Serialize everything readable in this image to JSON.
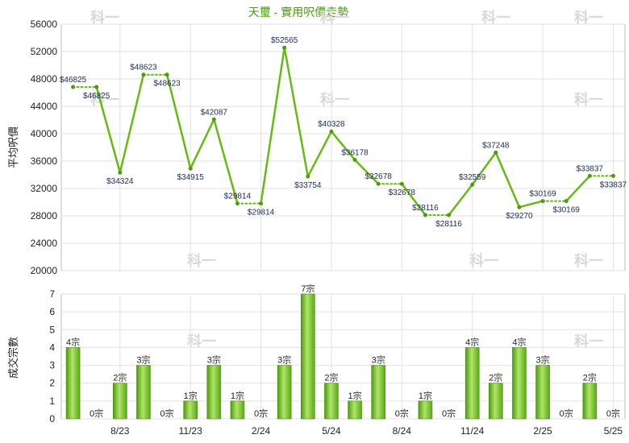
{
  "chart_data": [
    {
      "type": "line",
      "title": "天璽 - 實用呎價走勢",
      "ylabel": "平均呎價",
      "ylim": [
        20000,
        56000
      ],
      "yticks": [
        20000,
        24000,
        28000,
        32000,
        36000,
        40000,
        44000,
        48000,
        52000,
        56000
      ],
      "color": "#66bb11",
      "points": [
        {
          "label": "$46825",
          "value": 46825,
          "estimated": false
        },
        {
          "label": "$46825",
          "value": 46825,
          "estimated": true
        },
        {
          "label": "$34324",
          "value": 34324,
          "estimated": false
        },
        {
          "label": "$48623",
          "value": 48623,
          "estimated": false
        },
        {
          "label": "$48623",
          "value": 48623,
          "estimated": true
        },
        {
          "label": "$34915",
          "value": 34915,
          "estimated": false
        },
        {
          "label": "$42087",
          "value": 42087,
          "estimated": false
        },
        {
          "label": "$29814",
          "value": 29814,
          "estimated": false
        },
        {
          "label": "$29814",
          "value": 29814,
          "estimated": true
        },
        {
          "label": "$52565",
          "value": 52565,
          "estimated": false
        },
        {
          "label": "$33754",
          "value": 33754,
          "estimated": false
        },
        {
          "label": "$40328",
          "value": 40328,
          "estimated": false
        },
        {
          "label": "$36178",
          "value": 36178,
          "estimated": false
        },
        {
          "label": "$32678",
          "value": 32678,
          "estimated": false
        },
        {
          "label": "$32678",
          "value": 32678,
          "estimated": true
        },
        {
          "label": "$28116",
          "value": 28116,
          "estimated": false
        },
        {
          "label": "$28116",
          "value": 28116,
          "estimated": true
        },
        {
          "label": "$32559",
          "value": 32559,
          "estimated": false
        },
        {
          "label": "$37248",
          "value": 37248,
          "estimated": false
        },
        {
          "label": "$29270",
          "value": 29270,
          "estimated": false
        },
        {
          "label": "$30169",
          "value": 30169,
          "estimated": false
        },
        {
          "label": "$30169",
          "value": 30169,
          "estimated": true
        },
        {
          "label": "$33837",
          "value": 33837,
          "estimated": false
        },
        {
          "label": "$33837",
          "value": 33837,
          "estimated": true
        }
      ]
    },
    {
      "type": "bar",
      "ylabel": "成交宗數",
      "ylim": [
        0,
        7
      ],
      "yticks": [
        0,
        1,
        2,
        3,
        4,
        5,
        6,
        7
      ],
      "color": "#77cc22",
      "values": [
        4,
        0,
        2,
        3,
        0,
        1,
        3,
        1,
        0,
        3,
        7,
        2,
        1,
        3,
        0,
        1,
        0,
        4,
        2,
        4,
        3,
        0,
        2,
        0
      ],
      "value_suffix": "宗",
      "xticks": [
        {
          "label": "8/23",
          "index": 2
        },
        {
          "label": "11/23",
          "index": 5
        },
        {
          "label": "2/24",
          "index": 8
        },
        {
          "label": "5/24",
          "index": 11
        },
        {
          "label": "8/24",
          "index": 14
        },
        {
          "label": "11/24",
          "index": 17
        },
        {
          "label": "2/25",
          "index": 20
        },
        {
          "label": "5/25",
          "index": 23
        }
      ]
    }
  ],
  "watermark": "科一"
}
